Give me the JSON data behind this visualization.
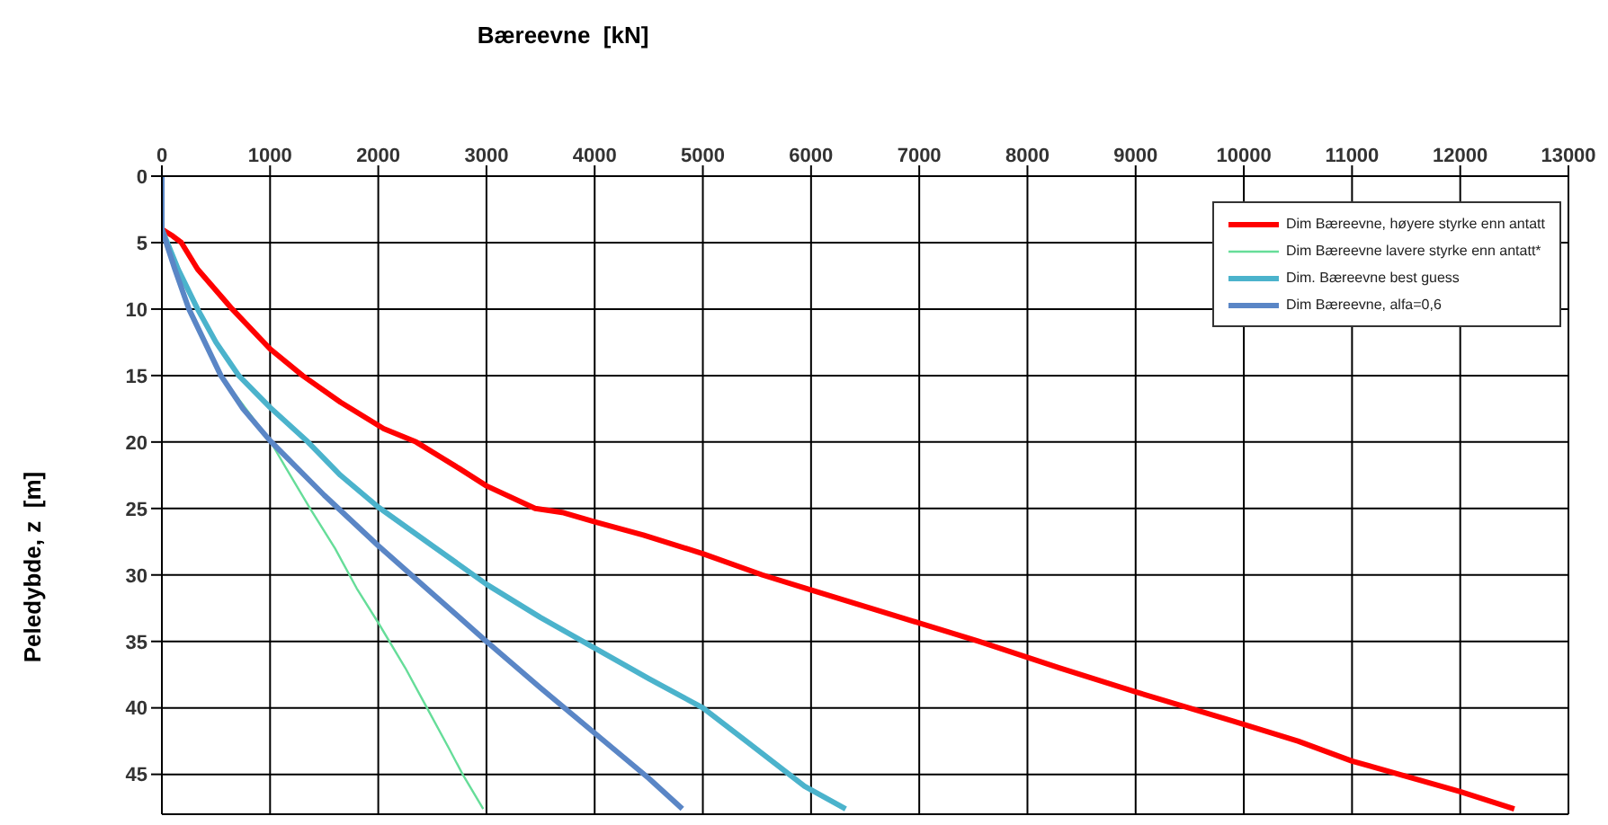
{
  "chart_data": {
    "type": "line",
    "title": "Bæreevne  [kN]",
    "ylabel": "Peledybde, z  [m]",
    "xlim": [
      0,
      13000
    ],
    "xticks": [
      0,
      1000,
      2000,
      3000,
      4000,
      5000,
      6000,
      7000,
      8000,
      9000,
      10000,
      11000,
      12000,
      13000
    ],
    "ylim": [
      48,
      0
    ],
    "yticks": [
      0,
      5,
      10,
      15,
      20,
      25,
      30,
      35,
      40,
      45
    ],
    "grid": true,
    "legend": "top right",
    "line_style": "solid",
    "marker": "none",
    "series": [
      {
        "name": "Dim Bæreevne, høyere styrke enn antatt",
        "color": "#ff0000",
        "x": [
          0,
          100,
          180,
          330,
          650,
          1000,
          1300,
          1650,
          2050,
          2350,
          2750,
          3000,
          3450,
          3700,
          4000,
          4450,
          5000,
          5550,
          5950,
          6750,
          7550,
          8300,
          9000,
          9900,
          10500,
          11000,
          12000,
          12500
        ],
        "values": [
          4,
          4.5,
          5,
          7,
          10,
          13,
          15,
          17,
          19,
          20,
          22,
          23.3,
          25,
          25.3,
          26,
          27,
          28.4,
          30,
          31,
          33,
          35,
          37,
          38.8,
          41,
          42.5,
          44,
          46.3,
          47.6
        ]
      },
      {
        "name": "Dim Bæreevne lavere styrke enn antatt*",
        "color": "#66dd99",
        "x": [
          0,
          40,
          120,
          250,
          545,
          1000,
          1150,
          1370,
          1600,
          1800,
          2000,
          2250,
          2450,
          2650,
          2780,
          2970
        ],
        "values": [
          4,
          5,
          7,
          10,
          15,
          19.9,
          22,
          25,
          28,
          31,
          33.6,
          37,
          40,
          43,
          45,
          47.6
        ]
      },
      {
        "name": "Dim. Bæreevne best guess",
        "color": "#4bb3cc",
        "x": [
          0,
          0,
          50,
          150,
          330,
          500,
          710,
          1000,
          1350,
          1650,
          2000,
          2500,
          3000,
          3500,
          4000,
          4500,
          5000,
          5400,
          5940,
          6320
        ],
        "values": [
          0,
          4,
          5,
          7,
          10,
          12.5,
          15,
          17.4,
          20,
          22.5,
          24.9,
          27.8,
          30.7,
          33.2,
          35.5,
          37.8,
          40,
          42.5,
          45.9,
          47.6
        ]
      },
      {
        "name": "Dim Bæreevne, alfa=0,6",
        "color": "#5a86c6",
        "x": [
          0,
          0,
          40,
          120,
          250,
          545,
          750,
          1000,
          1500,
          2000,
          2500,
          3000,
          3500,
          4000,
          4500,
          4810
        ],
        "values": [
          0,
          4,
          5,
          7,
          10,
          15,
          17.5,
          19.9,
          24,
          27.8,
          31.4,
          35,
          38.5,
          41.9,
          45.3,
          47.6
        ]
      }
    ]
  }
}
